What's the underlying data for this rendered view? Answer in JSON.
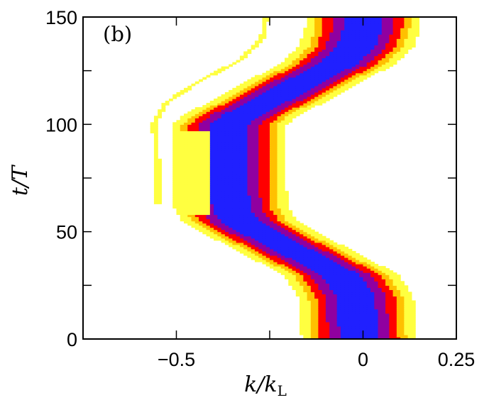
{
  "chart_data": {
    "type": "heatmap",
    "panel_label": "(b)",
    "xlabel": {
      "main": "k/k",
      "sub": "L"
    },
    "ylabel": "t/T",
    "xlim": [
      -0.75,
      0.25
    ],
    "ylim": [
      0,
      150
    ],
    "x_ticks": [
      {
        "value": -0.5,
        "label": "−0.5"
      },
      {
        "value": 0,
        "label": "0"
      },
      {
        "value": 0.25,
        "label": "0.25"
      }
    ],
    "x_minor_ticks": [
      -0.25
    ],
    "y_ticks": [
      {
        "value": 0,
        "label": "0"
      },
      {
        "value": 50,
        "label": "50"
      },
      {
        "value": 100,
        "label": "100"
      },
      {
        "value": 150,
        "label": "150"
      }
    ],
    "y_minor_ticks": [
      25,
      75,
      125
    ],
    "grid": false,
    "colormap": [
      "#ffffff",
      "#ffff40",
      "#ffc000",
      "#ff0000",
      "#9000a0",
      "#2020ff"
    ],
    "main_band_center": [
      [
        0,
        -0.01
      ],
      [
        20,
        -0.02
      ],
      [
        30,
        -0.06
      ],
      [
        40,
        -0.17
      ],
      [
        50,
        -0.28
      ],
      [
        55,
        -0.33
      ],
      [
        60,
        -0.35
      ],
      [
        70,
        -0.36
      ],
      [
        80,
        -0.36
      ],
      [
        90,
        -0.36
      ],
      [
        100,
        -0.36
      ],
      [
        105,
        -0.32
      ],
      [
        112,
        -0.24
      ],
      [
        120,
        -0.16
      ],
      [
        128,
        -0.07
      ],
      [
        136,
        -0.02
      ],
      [
        145,
        0.0
      ],
      [
        150,
        0.0
      ]
    ],
    "blue_core_region": {
      "k_min": -0.41,
      "t_range": [
        58,
        97
      ]
    },
    "secondary_features": [
      {
        "kind": "thin-tail",
        "points": [
          [
            63,
            -0.55
          ],
          [
            80,
            -0.55
          ],
          [
            100,
            -0.56
          ],
          [
            110,
            -0.53
          ],
          [
            120,
            -0.44
          ],
          [
            130,
            -0.33
          ],
          [
            140,
            -0.27
          ],
          [
            150,
            -0.26
          ]
        ]
      },
      {
        "kind": "small-lobe",
        "points": [
          [
            90,
            -0.47
          ],
          [
            98,
            -0.45
          ],
          [
            105,
            -0.4
          ],
          [
            115,
            -0.3
          ],
          [
            125,
            -0.18
          ],
          [
            135,
            -0.1
          ],
          [
            150,
            -0.07
          ]
        ]
      }
    ]
  }
}
